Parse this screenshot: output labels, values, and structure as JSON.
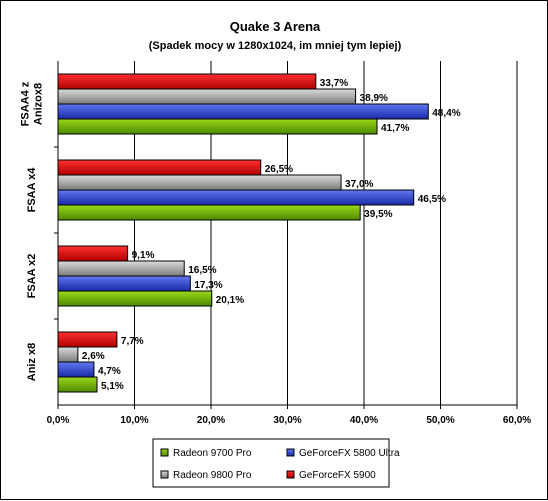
{
  "chart_data": {
    "type": "bar",
    "orientation": "horizontal",
    "title": "Quake 3 Arena",
    "subtitle": "(Spadek mocy w 1280x1024, im mniej tym lepiej)",
    "categories": [
      "FSAA4 z Anizox8",
      "FSAA x4",
      "FSAA x2",
      "Aniz x8"
    ],
    "xlim": [
      0,
      60
    ],
    "x_ticks": [
      "0,0%",
      "10,0%",
      "20,0%",
      "30,0%",
      "40,0%",
      "50,0%",
      "60,0%"
    ],
    "grid": true,
    "legend_position": "bottom",
    "series": [
      {
        "name": "GeForceFX 5900",
        "color": "#e00000",
        "values": [
          33.7,
          26.5,
          9.1,
          7.7
        ],
        "labels": [
          "33,7%",
          "26,5%",
          "9,1%",
          "7,7%"
        ]
      },
      {
        "name": "Radeon 9800 Pro",
        "color": "#a0a0a0",
        "values": [
          38.9,
          37.0,
          16.5,
          2.6
        ],
        "labels": [
          "38,9%",
          "37,0%",
          "16,5%",
          "2,6%"
        ]
      },
      {
        "name": "GeForceFX 5800 Ultra",
        "color": "#2a3fd4",
        "values": [
          48.4,
          46.5,
          17.3,
          4.7
        ],
        "labels": [
          "48,4%",
          "46,5%",
          "17,3%",
          "4,7%"
        ]
      },
      {
        "name": "Radeon 9700 Pro",
        "color": "#6aa800",
        "values": [
          41.7,
          39.5,
          20.1,
          5.1
        ],
        "labels": [
          "41,7%",
          "39,5%",
          "20,1%",
          "5,1%"
        ]
      }
    ],
    "legend_order": [
      "Radeon 9700 Pro",
      "GeForceFX 5800 Ultra",
      "Radeon 9800 Pro",
      "GeForceFX 5900"
    ]
  }
}
